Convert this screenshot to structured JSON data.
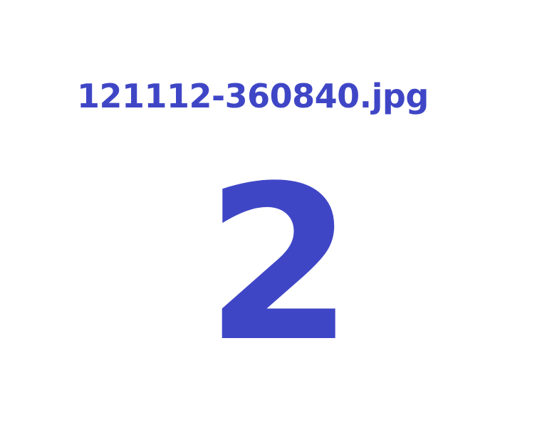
{
  "image": {
    "filename": "121112-360840.jpg",
    "number": "2"
  },
  "colors": {
    "text": "#3f46c6",
    "background": "#ffffff"
  }
}
